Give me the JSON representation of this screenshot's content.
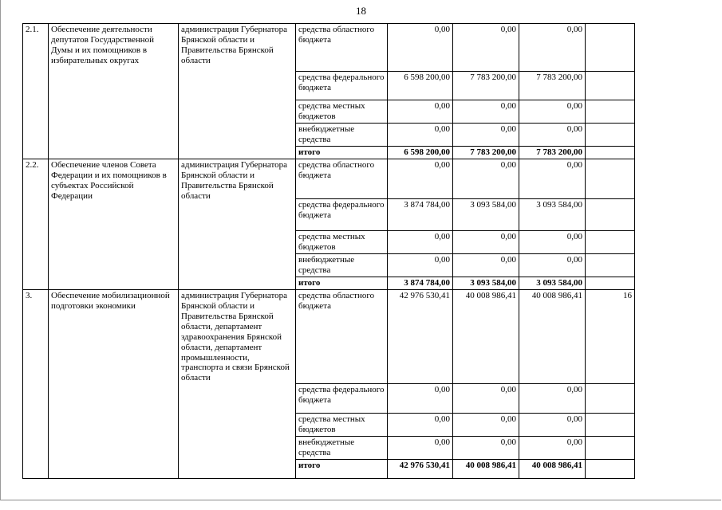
{
  "page": {
    "number": "18"
  },
  "table": {
    "groups": [
      {
        "num": "2.1.",
        "description": "Обеспечение деятельности депутатов Государственной Думы и их помощников в избирательных округах",
        "executor": "администрация Губернатора Брянской области и Правительства Брянской области",
        "rows": [
          {
            "source": "средства областного бюджета",
            "v1": "0,00",
            "v2": "0,00",
            "v3": "0,00",
            "note": "",
            "bold": false
          },
          {
            "source": "средства федерального бюджета",
            "v1": "6 598 200,00",
            "v2": "7 783 200,00",
            "v3": "7 783 200,00",
            "note": "",
            "bold": false
          },
          {
            "source": "средства местных бюджетов",
            "v1": "0,00",
            "v2": "0,00",
            "v3": "0,00",
            "note": "",
            "bold": false
          },
          {
            "source": "внебюджетные средства",
            "v1": "0,00",
            "v2": "0,00",
            "v3": "0,00",
            "note": "",
            "bold": false
          },
          {
            "source": "итого",
            "v1": "6 598 200,00",
            "v2": "7 783 200,00",
            "v3": "7 783 200,00",
            "note": "",
            "bold": true
          }
        ]
      },
      {
        "num": "2.2.",
        "description": "Обеспечение членов Совета Федерации и их помощников в субъектах Российской Федерации",
        "executor": "администрация Губернатора Брянской области и Правительства Брянской области",
        "rows": [
          {
            "source": "средства областного бюджета",
            "v1": "0,00",
            "v2": "0,00",
            "v3": "0,00",
            "note": "",
            "bold": false
          },
          {
            "source": "средства федерального бюджета",
            "v1": "3 874 784,00",
            "v2": "3 093 584,00",
            "v3": "3 093 584,00",
            "note": "",
            "bold": false
          },
          {
            "source": "средства местных бюджетов",
            "v1": "0,00",
            "v2": "0,00",
            "v3": "0,00",
            "note": "",
            "bold": false
          },
          {
            "source": "внебюджетные средства",
            "v1": "0,00",
            "v2": "0,00",
            "v3": "0,00",
            "note": "",
            "bold": false
          },
          {
            "source": "итого",
            "v1": "3 874 784,00",
            "v2": "3 093 584,00",
            "v3": "3 093 584,00",
            "note": "",
            "bold": true
          }
        ]
      },
      {
        "num": "3.",
        "description": "Обеспечение мобилизационной подготовки экономики",
        "executor": "администрация Губернатора Брянской области и Правительства Брянской области, департамент здравоохранения Брянской области, департамент промышленности, транспорта и связи Брянской области",
        "rows": [
          {
            "source": "средства областного бюджета",
            "v1": "42 976 530,41",
            "v2": "40 008 986,41",
            "v3": "40 008 986,41",
            "note": "16",
            "bold": false
          },
          {
            "source": "средства федерального бюджета",
            "v1": "0,00",
            "v2": "0,00",
            "v3": "0,00",
            "note": "",
            "bold": false
          },
          {
            "source": "средства местных бюджетов",
            "v1": "0,00",
            "v2": "0,00",
            "v3": "0,00",
            "note": "",
            "bold": false
          },
          {
            "source": "внебюджетные средства",
            "v1": "0,00",
            "v2": "0,00",
            "v3": "0,00",
            "note": "",
            "bold": false
          },
          {
            "source": "итого",
            "v1": "42 976 530,41",
            "v2": "40 008 986,41",
            "v3": "40 008 986,41",
            "note": "",
            "bold": true
          }
        ]
      }
    ]
  }
}
